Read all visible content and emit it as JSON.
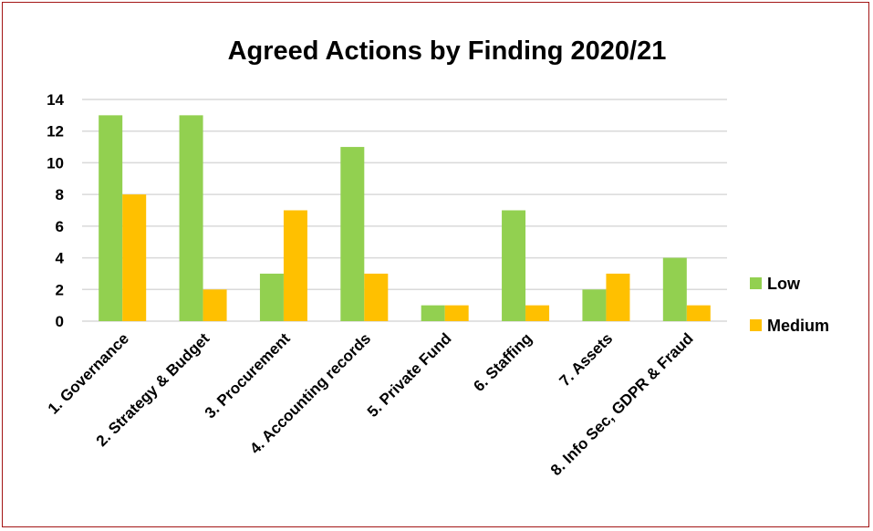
{
  "chart_data": {
    "type": "bar",
    "title": "Agreed Actions by Finding 2020/21",
    "categories": [
      "1. Governance",
      "2. Strategy & Budget",
      "3. Procurement",
      "4. Accounting records",
      "5. Private Fund",
      "6. Staffing",
      "7. Assets",
      "8. Info Sec, GDPR & Fraud"
    ],
    "series": [
      {
        "name": "Low",
        "color": "#92d050",
        "values": [
          13,
          13,
          3,
          11,
          1,
          7,
          2,
          4
        ]
      },
      {
        "name": "Medium",
        "color": "#ffc000",
        "values": [
          8,
          2,
          7,
          3,
          1,
          1,
          3,
          1
        ]
      }
    ],
    "ylim": [
      0,
      14
    ],
    "yticks": [
      0,
      2,
      4,
      6,
      8,
      10,
      12,
      14
    ],
    "grid": true,
    "legend": "right"
  }
}
